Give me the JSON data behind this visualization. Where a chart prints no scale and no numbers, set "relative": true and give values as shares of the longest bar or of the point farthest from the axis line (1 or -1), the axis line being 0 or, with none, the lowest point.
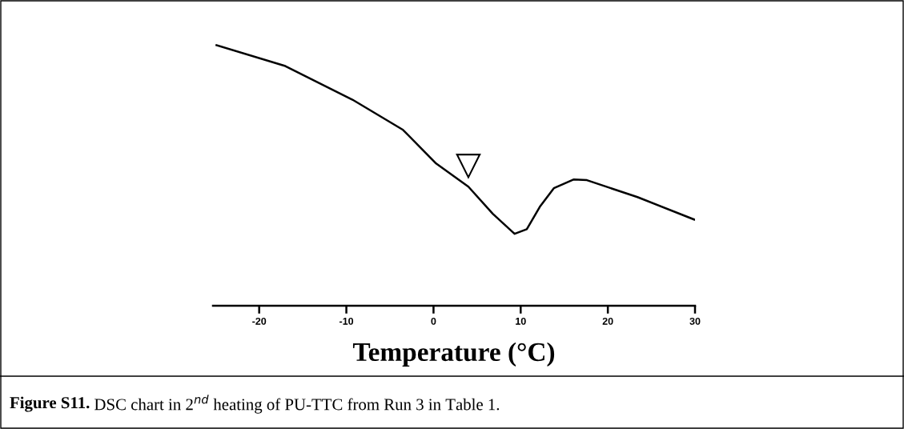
{
  "chart_data": {
    "type": "line",
    "relative": true,
    "xlabel": "Temperature (°C)",
    "xlim": [
      -25.3,
      30
    ],
    "xticks": [
      -20,
      -10,
      0,
      10,
      20,
      30
    ],
    "tick_labels": "x",
    "grid": false,
    "legend": false,
    "series": [
      {
        "color": "#000000",
        "x": [
          -24.9,
          -17,
          -9.3,
          -3.5,
          0.3,
          4.0,
          6.8,
          9.3,
          10.7,
          12.2,
          13.8,
          16.1,
          17.6,
          23.4,
          29.9
        ],
        "values": [
          1.0,
          0.92,
          0.791,
          0.675,
          0.546,
          0.457,
          0.353,
          0.276,
          0.294,
          0.38,
          0.451,
          0.485,
          0.482,
          0.417,
          0.331
        ]
      }
    ],
    "annotations": [
      {
        "text": "▽",
        "x": 4.0,
        "y": 0.475
      },
      "Figure S11.",
      " DSC chart in 2$^{nd}$ heating of PU-TTC from Run 3 in Table 1."
    ]
  }
}
